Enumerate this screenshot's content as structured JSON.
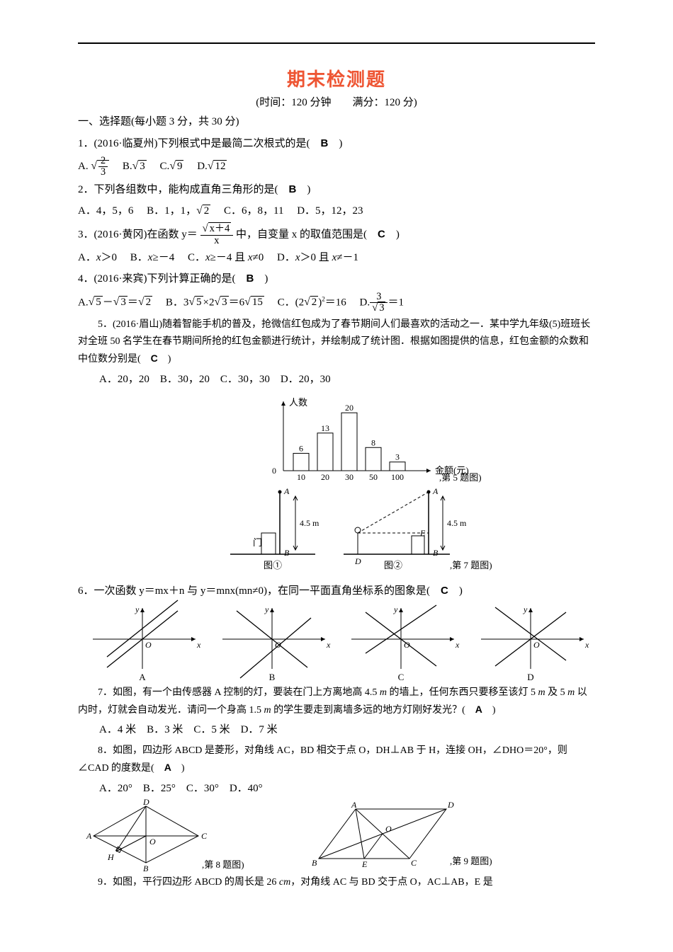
{
  "title": "期末检测题",
  "subtitle": "(时间：120 分钟　　满分：120 分)",
  "section1": "一、选择题(每小题 3 分，共 30 分)",
  "q1": {
    "stem_a": "1．(2016·临夏州)下列根式中是最简二次根式的是(　",
    "ans": "B",
    "stem_b": "　)",
    "opts_prefix_A": "A.",
    "opts_B": "　B.",
    "opts_C": "　C.",
    "opts_D": "　D.",
    "A_inner": "2",
    "A_inner_den": "3",
    "B_inner": "3",
    "C_inner": "9",
    "D_inner": "12"
  },
  "q2": {
    "stem_a": "2．下列各组数中，能构成直角三角形的是(　",
    "ans": "B",
    "stem_b": "　)",
    "optA": "A．4，5，6",
    "optB": "　B．1，1，",
    "optB_root": "2",
    "optC": "　C．6，8，11",
    "optD": "　D．5，12，23"
  },
  "q3": {
    "stem_a": "3．(2016·黄冈)在函数 y＝",
    "num_root": "x＋4",
    "den": "x",
    "stem_b": "中，自变量 x 的取值范围是(　",
    "ans": "C",
    "stem_c": "　)",
    "optA_a": "A．",
    "optA_b": "x",
    "optA_c": "＞0",
    "optB_a": "　B．",
    "optB_b": "x",
    "optB_c": "≥－4",
    "optC_a": "　C．",
    "optC_b": "x",
    "optC_c": "≥－4 且 ",
    "optC_d": "x",
    "optC_e": "≠0",
    "optD_a": "　D．",
    "optD_b": "x",
    "optD_c": "＞0 且 ",
    "optD_d": "x",
    "optD_e": "≠－1"
  },
  "q4": {
    "stem_a": "4．(2016·来宾)下列计算正确的是(　",
    "ans": "B",
    "stem_b": "　)",
    "A_pre": "A.",
    "A_r1": "5",
    "A_mid1": "－",
    "A_r2": "3",
    "A_mid2": "＝",
    "A_r3": "2",
    "B_pre": "　B．3",
    "B_r1": "5",
    "B_mid1": "×2",
    "B_r2": "3",
    "B_mid2": "＝6",
    "B_r3": "15",
    "C_pre": "　C．(2",
    "C_r1": "2",
    "C_mid": ")",
    "C_sup": "2",
    "C_eq": "＝16",
    "D_pre": "　D.",
    "D_num": "3",
    "D_den_r": "3",
    "D_eq": "＝1"
  },
  "q5": {
    "para": "　　5．(2016·眉山)随着智能手机的普及，抢微信红包成为了春节期间人们最喜欢的活动之一．某中学九年级(5)班班长对全班 50 名学生在春节期间所抢的红包金额进行统计，并绘制成了统计图．根据如图提供的信息，红包金额的众数和中位数分别是(　",
    "ans": "C",
    "para_b": "　)",
    "opts": "A．20，20　B．30，20　C．30，30　D．20，30",
    "chart": {
      "ylabel": "人数",
      "xlabel": "金额(元)",
      "cap": ",第 5 题图)",
      "categories": [
        "10",
        "20",
        "30",
        "50",
        "100"
      ],
      "values": [
        6,
        13,
        20,
        8,
        3
      ],
      "ymax": 22,
      "bar_color": "#ffffff",
      "stroke": "#000000"
    },
    "fig7": {
      "cap1": "图①",
      "cap2": "图②",
      "right_cap": ",第 7 题图)",
      "A": "A",
      "B": "B",
      "D": "D",
      "E": "E",
      "door": "门",
      "h": "4.5 m"
    }
  },
  "q6": {
    "stem_a": "6．一次函数 y＝mx＋n 与 y＝mnx(mn≠0)，在同一平面直角坐标系的图象是(　",
    "ans": "C",
    "stem_b": "　)",
    "labels": {
      "A": "A",
      "B": "B",
      "C": "C",
      "D": "D",
      "x": "x",
      "y": "y",
      "O": "O"
    }
  },
  "q7": {
    "para_a": "　　7．如图，有一个由传感器 A 控制的灯，要装在门上方离地高 4.5 ",
    "m1": "m",
    "para_b": " 的墙上，任何东西只要移至该灯 5 ",
    "m2": "m",
    "para_c": " 及 5 ",
    "m3": "m",
    "para_d": " 以内时，灯就会自动发光．请问一个身高 1.5 ",
    "m4": "m",
    "para_e": " 的学生要走到离墙多远的地方灯刚好发光？(　",
    "ans": "A",
    "para_f": "　)",
    "opts": "A．4 米　B．3 米　C．5 米　D．7 米"
  },
  "q8": {
    "para_a": "　　8．如图，四边形 ABCD 是菱形，对角线 AC，BD 相交于点 O，DH⊥AB 于 H，连接 OH，∠DHO＝20°，则∠CAD 的度数是(　",
    "ans": "A",
    "para_b": "　)",
    "opts": "A．20°　B．25°　C．30°　D．40°",
    "fig": {
      "A": "A",
      "B": "B",
      "C": "C",
      "D": "D",
      "H": "H",
      "O": "O",
      "cap": ",第 8 题图)"
    }
  },
  "q9": {
    "para_a": "　　9．如图，平行四边形 ABCD 的周长是 26 ",
    "cm": "cm",
    "para_b": "，对角线 AC 与 BD 交于点 O，AC⊥AB，E 是",
    "fig": {
      "A": "A",
      "B": "B",
      "C": "C",
      "D": "D",
      "E": "E",
      "O": "O",
      "cap": ",第 9 题图)"
    }
  }
}
